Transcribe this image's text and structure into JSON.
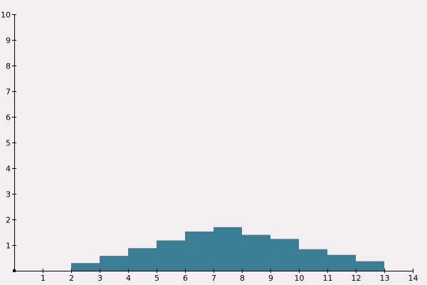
{
  "chart_data": {
    "type": "bar",
    "title": "",
    "xlabel": "",
    "ylabel": "",
    "xlim": [
      0,
      14
    ],
    "ylim": [
      0,
      10
    ],
    "x_ticks": [
      1,
      2,
      3,
      4,
      5,
      6,
      7,
      8,
      9,
      10,
      11,
      12,
      13,
      14
    ],
    "y_ticks": [
      1,
      2,
      3,
      4,
      5,
      6,
      7,
      8,
      9,
      10
    ],
    "grid": false,
    "bar_color": "#3a7d94",
    "bins": [
      {
        "x0": 2,
        "x1": 3,
        "value": 0.3
      },
      {
        "x0": 3,
        "x1": 4,
        "value": 0.58
      },
      {
        "x0": 4,
        "x1": 5,
        "value": 0.88
      },
      {
        "x0": 5,
        "x1": 6,
        "value": 1.18
      },
      {
        "x0": 6,
        "x1": 7,
        "value": 1.53
      },
      {
        "x0": 7,
        "x1": 8,
        "value": 1.7
      },
      {
        "x0": 8,
        "x1": 9,
        "value": 1.4
      },
      {
        "x0": 9,
        "x1": 10,
        "value": 1.24
      },
      {
        "x0": 10,
        "x1": 11,
        "value": 0.84
      },
      {
        "x0": 11,
        "x1": 12,
        "value": 0.62
      },
      {
        "x0": 12,
        "x1": 13,
        "value": 0.37
      }
    ]
  }
}
